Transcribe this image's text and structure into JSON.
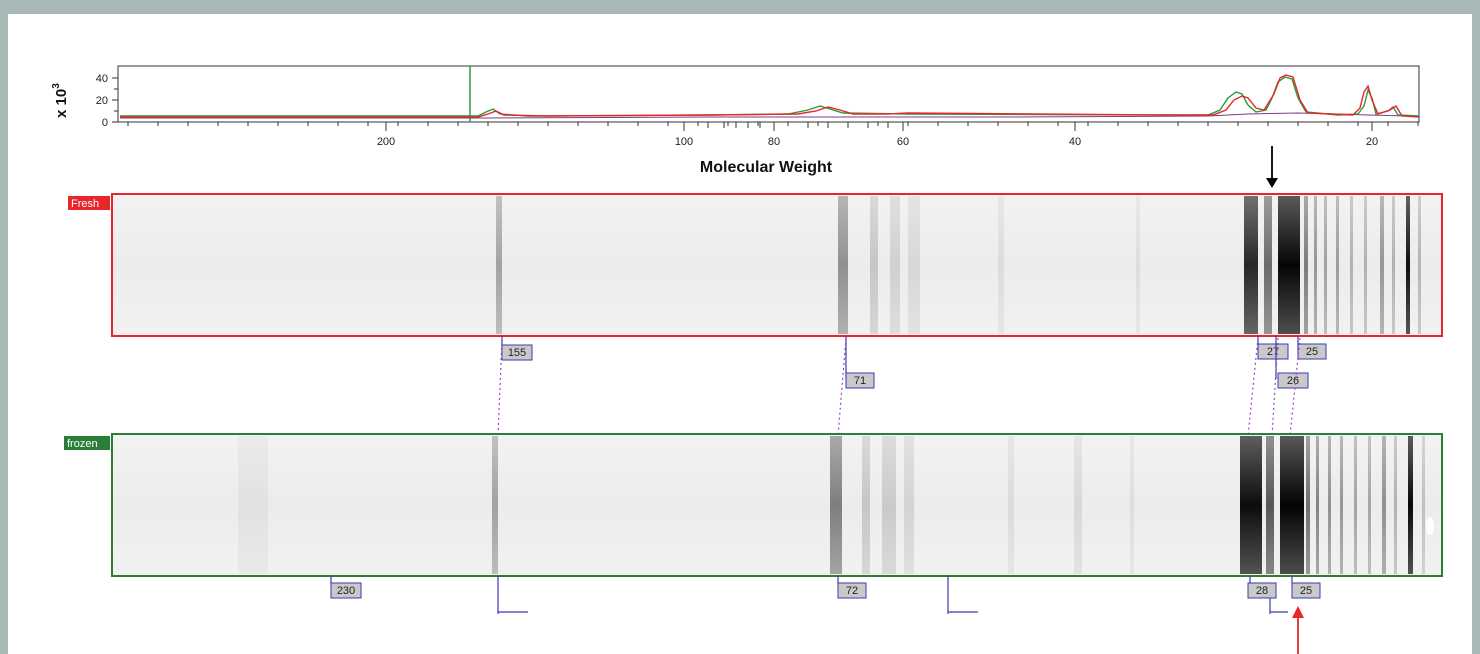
{
  "chart": {
    "ylabel_base": "x 10",
    "ylabel_exp": "3",
    "yticks": [
      "40",
      "20",
      "0"
    ],
    "xticks": [
      "200",
      "100",
      "80",
      "60",
      "40",
      "20"
    ],
    "xlabel": "Molecular Weight"
  },
  "lanes": {
    "fresh": {
      "label": "Fresh",
      "color": "#e8262b",
      "band_labels": [
        "155",
        "71",
        "27",
        "25",
        "26"
      ]
    },
    "frozen": {
      "label": "frozen",
      "color": "#2a7e37",
      "band_labels": [
        "230",
        "72",
        "28",
        "25"
      ]
    }
  },
  "colors": {
    "trace_fresh": "#e8262b",
    "trace_frozen": "#2a9a3a",
    "trace_other": "#7a3c8c",
    "marker_line": "#2f9a44",
    "label_box_fill": "#c9c9c9",
    "label_box_stroke": "#3a3ab0",
    "link_dotted": "#a040c0",
    "arrow_top": "#000000",
    "arrow_bottom": "#e8262b"
  },
  "icons": {
    "arrow_top": "down-arrow-icon",
    "arrow_bottom": "up-arrow-icon"
  }
}
